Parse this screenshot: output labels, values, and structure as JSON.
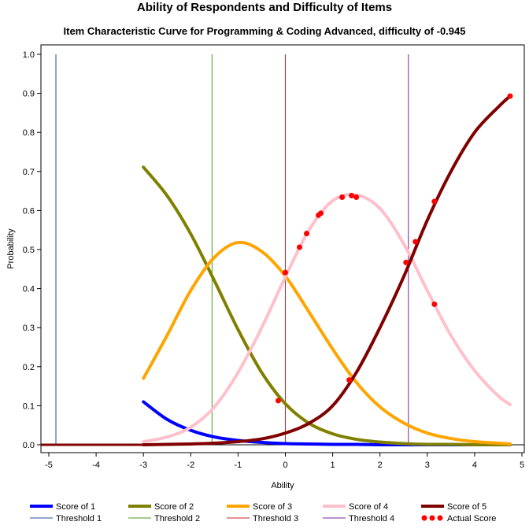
{
  "chart_data": {
    "type": "line",
    "title": "Ability of Respondents and Difficulty of Items",
    "subtitle": "Item Characteristic Curve for Programming & Coding Advanced, difficulty of -0.945",
    "xlabel": "Ability",
    "ylabel": "Probability",
    "xlim": [
      -5,
      5
    ],
    "ylim": [
      0,
      1
    ],
    "x_ticks": [
      -5,
      -4,
      -3,
      -2,
      -1,
      0,
      1,
      2,
      3,
      4,
      5
    ],
    "x_tick_labels": [
      "-5",
      "-4",
      "-3",
      "-2",
      "-1",
      "0",
      "1",
      "2",
      "3",
      "4",
      "5"
    ],
    "y_ticks": [
      0,
      0.1,
      0.2,
      0.3,
      0.4,
      0.5,
      0.6,
      0.7,
      0.8,
      0.9,
      1.0
    ],
    "y_tick_labels": [
      "0.0",
      "0.1",
      "0.2",
      "0.3",
      "0.4",
      "0.5",
      "0.6",
      "0.7",
      "0.8",
      "0.9",
      "1.0"
    ],
    "grid": false,
    "legend_position": "bottom",
    "x": [
      -3.0,
      -2.5,
      -2.0,
      -1.5,
      -1.0,
      -0.5,
      0.0,
      0.5,
      1.0,
      1.5,
      2.0,
      2.5,
      3.0,
      3.5,
      4.0,
      4.5,
      4.75
    ],
    "series": [
      {
        "name": "Score of 1",
        "color": "#0000ff",
        "values": [
          0.11,
          0.065,
          0.037,
          0.02,
          0.011,
          0.006,
          0.003,
          0.002,
          0.001,
          0.001,
          0.0,
          0.0,
          0.0,
          0.0,
          0.0,
          0.0,
          0.0
        ]
      },
      {
        "name": "Score of 2",
        "color": "#808000",
        "values": [
          0.711,
          0.638,
          0.54,
          0.42,
          0.295,
          0.185,
          0.105,
          0.055,
          0.028,
          0.014,
          0.007,
          0.003,
          0.001,
          0.001,
          0.0,
          0.0,
          0.0
        ]
      },
      {
        "name": "Score of 3",
        "color": "#ffa500",
        "values": [
          0.17,
          0.28,
          0.395,
          0.48,
          0.518,
          0.495,
          0.432,
          0.34,
          0.245,
          0.16,
          0.097,
          0.056,
          0.03,
          0.016,
          0.008,
          0.004,
          0.002
        ]
      },
      {
        "name": "Score of 4",
        "color": "#ffc0cb",
        "values": [
          0.008,
          0.02,
          0.045,
          0.097,
          0.185,
          0.3,
          0.43,
          0.55,
          0.625,
          0.64,
          0.605,
          0.515,
          0.395,
          0.28,
          0.19,
          0.125,
          0.103
        ]
      },
      {
        "name": "Score of 5",
        "color": "#800000",
        "values": [
          0.0,
          0.001,
          0.002,
          0.004,
          0.008,
          0.015,
          0.03,
          0.055,
          0.1,
          0.185,
          0.3,
          0.43,
          0.575,
          0.7,
          0.8,
          0.865,
          0.893
        ]
      }
    ],
    "thresholds": [
      {
        "name": "Threshold 1",
        "x": -4.85,
        "color": "#1f4e9c"
      },
      {
        "name": "Threshold 2",
        "x": -1.55,
        "color": "#4d9a1c"
      },
      {
        "name": "Threshold 3",
        "x": 0.0,
        "color": "#cc2222"
      },
      {
        "name": "Threshold 4",
        "x": 2.6,
        "color": "#7b1f9a"
      }
    ],
    "actual_scores": {
      "name": "Actual Score",
      "color": "#ff0000",
      "points": [
        {
          "x": -0.15,
          "y": 0.113
        },
        {
          "x": 0.0,
          "y": 0.441
        },
        {
          "x": 0.3,
          "y": 0.506
        },
        {
          "x": 0.45,
          "y": 0.541
        },
        {
          "x": 0.7,
          "y": 0.588
        },
        {
          "x": 0.75,
          "y": 0.593
        },
        {
          "x": 1.2,
          "y": 0.634
        },
        {
          "x": 1.4,
          "y": 0.638
        },
        {
          "x": 1.5,
          "y": 0.634
        },
        {
          "x": 1.35,
          "y": 0.166
        },
        {
          "x": 2.55,
          "y": 0.467
        },
        {
          "x": 2.75,
          "y": 0.52
        },
        {
          "x": 3.15,
          "y": 0.623
        },
        {
          "x": 3.15,
          "y": 0.36
        },
        {
          "x": 4.75,
          "y": 0.893
        }
      ]
    }
  }
}
